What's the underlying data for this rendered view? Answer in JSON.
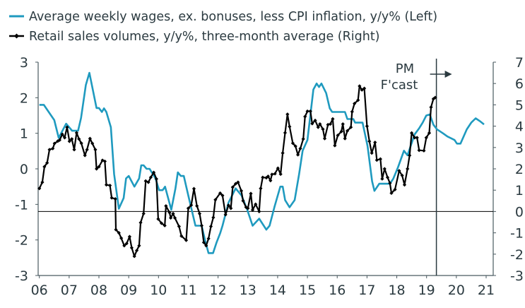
{
  "chart_data": {
    "type": "line",
    "title": "",
    "legend_placement": "top-left",
    "grid": false,
    "x_axis": {
      "range": [
        2006,
        2021
      ],
      "tick_labels": [
        "06",
        "07",
        "08",
        "09",
        "10",
        "11",
        "12",
        "13",
        "14",
        "15",
        "16",
        "17",
        "18",
        "19",
        "20",
        "21"
      ],
      "ticks": [
        2006,
        2007,
        2008,
        2009,
        2010,
        2011,
        2012,
        2013,
        2014,
        2015,
        2016,
        2017,
        2018,
        2019,
        2020,
        2021
      ]
    },
    "y_left": {
      "range": [
        -3,
        3
      ],
      "ticks": [
        -3,
        -2,
        -1,
        0,
        1,
        2,
        3
      ],
      "tick_labels": [
        "-3",
        "-2",
        "-1",
        "0",
        "1",
        "2",
        "3"
      ]
    },
    "y_right": {
      "range": [
        -3,
        7
      ],
      "ticks": [
        -3,
        -2,
        -1,
        0,
        1,
        2,
        3,
        4,
        5,
        6,
        7
      ],
      "tick_labels": [
        "-3",
        "-2",
        "-1",
        "0",
        "1",
        "2",
        "3",
        "4",
        "5",
        "6",
        "7"
      ]
    },
    "forecast": {
      "x": 2019.33,
      "label_line1": "PM",
      "label_line2": "F'cast"
    },
    "colors": {
      "wages": "#1f9abf",
      "retail": "#000000",
      "text": "#2b3a40",
      "axis": "#4a5a60"
    },
    "series": [
      {
        "name": "Average weekly wages, ex. bonuses, less CPI inflation, y/y% (Left)",
        "axis": "left",
        "marker": "none",
        "x": [
          2006.0,
          2006.15,
          2006.5,
          2006.65,
          2006.9,
          2007.1,
          2007.3,
          2007.4,
          2007.56,
          2007.68,
          2007.92,
          2008.0,
          2008.1,
          2008.17,
          2008.25,
          2008.4,
          2008.51,
          2008.67,
          2008.83,
          2008.91,
          2009.0,
          2009.19,
          2009.35,
          2009.42,
          2009.5,
          2009.6,
          2009.7,
          2009.9,
          2010.02,
          2010.14,
          2010.22,
          2010.43,
          2010.57,
          2010.65,
          2010.75,
          2010.85,
          2011.0,
          2011.24,
          2011.45,
          2011.56,
          2011.68,
          2011.83,
          2011.95,
          2012.07,
          2012.15,
          2012.35,
          2012.59,
          2012.79,
          2012.98,
          2013.16,
          2013.38,
          2013.62,
          2013.73,
          2013.89,
          2014.09,
          2014.17,
          2014.25,
          2014.4,
          2014.57,
          2014.72,
          2014.84,
          2015.0,
          2015.2,
          2015.31,
          2015.39,
          2015.47,
          2015.63,
          2015.75,
          2015.83,
          2016.26,
          2016.34,
          2016.54,
          2016.6,
          2016.85,
          2017.02,
          2017.17,
          2017.25,
          2017.41,
          2017.77,
          2017.88,
          2018.04,
          2018.24,
          2018.36,
          2018.6,
          2018.75,
          2018.87,
          2018.99,
          2019.11,
          2019.23,
          2019.35,
          2019.55,
          2019.7,
          2019.94,
          2020.02,
          2020.14,
          2020.35,
          2020.5,
          2020.65,
          2020.81,
          2020.93
        ],
        "values": [
          1.8,
          1.8,
          1.37,
          0.87,
          1.27,
          1.07,
          1.07,
          1.43,
          2.36,
          2.7,
          1.71,
          1.71,
          1.6,
          1.7,
          1.6,
          1.17,
          -0.15,
          -1.12,
          -0.82,
          -0.27,
          -0.2,
          -0.5,
          -0.27,
          0.1,
          0.1,
          0.0,
          0.0,
          -0.27,
          -0.6,
          -0.6,
          -0.5,
          -1.15,
          -0.55,
          -0.1,
          -0.2,
          -0.2,
          -0.75,
          -1.6,
          -1.6,
          -2.0,
          -2.37,
          -2.37,
          -2.07,
          -1.81,
          -1.6,
          -0.95,
          -0.55,
          -0.75,
          -1.15,
          -1.6,
          -1.4,
          -1.71,
          -1.6,
          -1.08,
          -0.5,
          -0.5,
          -0.88,
          -1.08,
          -0.88,
          -0.15,
          0.51,
          0.81,
          2.23,
          2.4,
          2.3,
          2.4,
          2.13,
          1.7,
          1.6,
          1.6,
          1.4,
          1.4,
          1.3,
          1.3,
          0.64,
          -0.35,
          -0.62,
          -0.42,
          -0.42,
          -0.28,
          0.04,
          0.51,
          0.38,
          0.97,
          1.14,
          1.3,
          1.5,
          1.53,
          1.24,
          1.11,
          1.0,
          0.91,
          0.81,
          0.71,
          0.71,
          1.11,
          1.3,
          1.42,
          1.33,
          1.25
        ]
      },
      {
        "name": "Retail sales volumes, y/y%, three-month average (Right)",
        "axis": "right",
        "marker": "diamond",
        "x": [
          2006.0,
          2006.1,
          2006.17,
          2006.26,
          2006.34,
          2006.45,
          2006.51,
          2006.62,
          2006.68,
          2006.77,
          2006.85,
          2006.93,
          2007.01,
          2007.09,
          2007.17,
          2007.25,
          2007.33,
          2007.41,
          2007.53,
          2007.6,
          2007.7,
          2007.78,
          2007.88,
          2007.92,
          2008.0,
          2008.12,
          2008.2,
          2008.25,
          2008.37,
          2008.43,
          2008.55,
          2008.57,
          2008.67,
          2008.75,
          2008.85,
          2008.93,
          2009.03,
          2009.1,
          2009.19,
          2009.27,
          2009.35,
          2009.4,
          2009.5,
          2009.57,
          2009.66,
          2009.74,
          2009.84,
          2009.93,
          2009.99,
          2010.1,
          2010.21,
          2010.25,
          2010.37,
          2010.41,
          2010.49,
          2010.55,
          2010.69,
          2010.77,
          2010.93,
          2011.0,
          2011.1,
          2011.19,
          2011.29,
          2011.38,
          2011.45,
          2011.52,
          2011.6,
          2011.68,
          2011.76,
          2011.84,
          2011.91,
          2012.07,
          2012.15,
          2012.25,
          2012.35,
          2012.43,
          2012.49,
          2012.59,
          2012.67,
          2012.78,
          2012.84,
          2012.94,
          2013.0,
          2013.1,
          2013.16,
          2013.26,
          2013.38,
          2013.43,
          2013.5,
          2013.62,
          2013.68,
          2013.76,
          2013.81,
          2013.91,
          2014.01,
          2014.1,
          2014.17,
          2014.25,
          2014.33,
          2014.4,
          2014.51,
          2014.6,
          2014.68,
          2014.76,
          2014.86,
          2014.92,
          2015.0,
          2015.1,
          2015.16,
          2015.26,
          2015.36,
          2015.42,
          2015.52,
          2015.58,
          2015.69,
          2015.77,
          2015.85,
          2015.92,
          2016.02,
          2016.14,
          2016.19,
          2016.26,
          2016.34,
          2016.46,
          2016.5,
          2016.58,
          2016.7,
          2016.75,
          2016.83,
          2016.91,
          2017.0,
          2017.08,
          2017.16,
          2017.27,
          2017.33,
          2017.45,
          2017.51,
          2017.59,
          2017.69,
          2017.77,
          2017.82,
          2017.94,
          2018.08,
          2018.18,
          2018.26,
          2018.36,
          2018.43,
          2018.5,
          2018.6,
          2018.68,
          2018.75,
          2018.91,
          2018.99,
          2019.09,
          2019.15,
          2019.23,
          2019.29
        ],
        "values": [
          1.08,
          1.37,
          2.1,
          2.28,
          2.9,
          2.95,
          3.19,
          3.3,
          3.35,
          3.62,
          3.46,
          3.95,
          3.29,
          3.4,
          2.9,
          3.69,
          3.4,
          3.2,
          2.63,
          2.9,
          3.42,
          3.19,
          2.9,
          2.0,
          2.1,
          2.4,
          2.35,
          1.25,
          1.22,
          0.64,
          0.59,
          -0.85,
          -1.0,
          -1.25,
          -1.6,
          -1.5,
          -1.18,
          -1.7,
          -2.1,
          -1.83,
          -1.6,
          -0.52,
          -0.1,
          1.43,
          1.37,
          1.6,
          1.83,
          1.53,
          -0.35,
          -0.55,
          -0.66,
          0.26,
          -0.05,
          -0.3,
          -0.1,
          -0.3,
          -0.7,
          -1.15,
          -1.35,
          0.15,
          0.3,
          1.07,
          0.26,
          -0.1,
          -0.66,
          -1.45,
          -1.6,
          -1.27,
          -0.7,
          -0.28,
          0.55,
          0.86,
          0.75,
          -0.15,
          0.29,
          0.15,
          1.14,
          1.3,
          1.37,
          0.97,
          0.5,
          0.2,
          0.15,
          0.84,
          0.07,
          0.34,
          0.0,
          1.08,
          1.6,
          1.58,
          1.65,
          1.45,
          1.74,
          1.77,
          2.03,
          1.75,
          2.74,
          3.69,
          4.56,
          3.98,
          3.2,
          3.06,
          2.66,
          2.95,
          3.4,
          4.45,
          4.7,
          4.7,
          4.12,
          4.27,
          3.95,
          4.1,
          3.86,
          3.42,
          4.07,
          4.1,
          4.34,
          3.09,
          3.57,
          3.75,
          4.1,
          3.42,
          3.78,
          3.95,
          4.68,
          5.06,
          5.22,
          5.88,
          5.7,
          5.77,
          4.0,
          3.29,
          2.74,
          3.24,
          2.41,
          2.46,
          1.53,
          2.0,
          1.6,
          1.33,
          0.86,
          1.03,
          1.91,
          1.69,
          1.25,
          2.0,
          2.63,
          3.68,
          3.46,
          3.46,
          2.87,
          2.85,
          3.46,
          3.68,
          4.89,
          5.28,
          5.34
        ]
      }
    ]
  }
}
